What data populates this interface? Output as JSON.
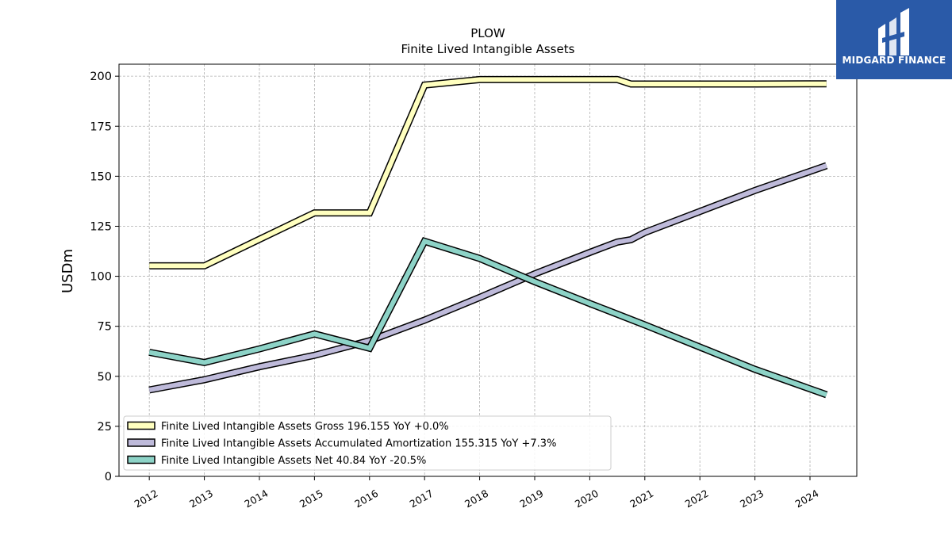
{
  "chart_data": {
    "type": "line",
    "title": "PLOW",
    "subtitle": "Finite Lived Intangible Assets",
    "xlabel": "",
    "ylabel": "USDm",
    "ylim": [
      0,
      206
    ],
    "xlim": [
      2011.45,
      2024.85
    ],
    "yticks": [
      0,
      25,
      50,
      75,
      100,
      125,
      150,
      175,
      200
    ],
    "xticks": [
      2012,
      2013,
      2014,
      2015,
      2016,
      2017,
      2018,
      2019,
      2020,
      2021,
      2022,
      2023,
      2024
    ],
    "grid": true,
    "legend_position": "lower-left",
    "series": [
      {
        "name": "Finite Lived Intangible Assets Gross",
        "legend_label": "Finite Lived Intangible Assets Gross  196.155 YoY +0.0%",
        "color": "#ffffbf",
        "x": [
          2012.0,
          2013.0,
          2014.0,
          2015.0,
          2016.0,
          2017.0,
          2018.0,
          2019.0,
          2020.0,
          2020.5,
          2020.75,
          2021.0,
          2022.0,
          2023.0,
          2024.3
        ],
        "y": [
          105.2,
          105.2,
          118.5,
          131.7,
          131.7,
          195.6,
          198.3,
          198.3,
          198.3,
          198.3,
          196.1,
          196.1,
          196.1,
          196.1,
          196.2
        ]
      },
      {
        "name": "Finite Lived Intangible Assets Accumulated Amortization",
        "legend_label": "Finite Lived Intangible Assets Accumulated Amortization  155.315 YoY +7.3%",
        "color": "#bebada",
        "x": [
          2012.0,
          2013.0,
          2014.0,
          2015.0,
          2016.0,
          2017.0,
          2018.0,
          2019.0,
          2020.0,
          2020.5,
          2020.75,
          2021.0,
          2022.0,
          2023.0,
          2024.3
        ],
        "y": [
          43.2,
          48.3,
          54.8,
          60.5,
          67.8,
          78.1,
          89.4,
          101.2,
          111.9,
          117.1,
          118.3,
          121.9,
          132.4,
          142.9,
          155.3
        ]
      },
      {
        "name": "Finite Lived Intangible Assets Net",
        "legend_label": "Finite Lived Intangible Assets Net  40.84 YoY -20.5%",
        "color": "#8dd3c7",
        "x": [
          2012.0,
          2013.0,
          2014.0,
          2015.0,
          2016.0,
          2017.0,
          2018.0,
          2019.0,
          2020.0,
          2021.0,
          2022.0,
          2023.0,
          2024.3
        ],
        "y": [
          62.0,
          56.9,
          63.7,
          71.2,
          64.0,
          117.5,
          108.9,
          97.3,
          86.4,
          75.7,
          64.6,
          53.5,
          40.8
        ]
      }
    ]
  },
  "logo": {
    "text": "MIDGARD FINANCE",
    "background": "#2a5aa8"
  }
}
